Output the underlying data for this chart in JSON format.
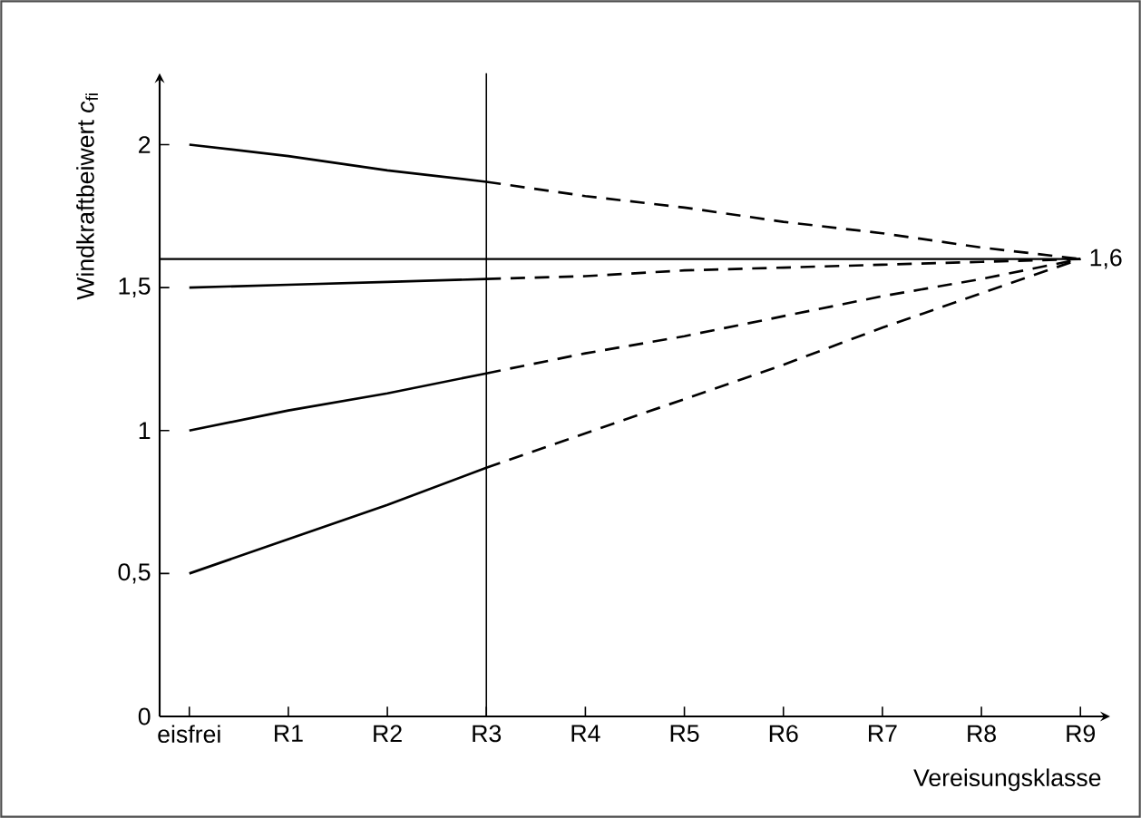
{
  "chart_data": {
    "type": "line",
    "xlabel": "Vereisungsklasse",
    "ylabel": "Windkraftbeiwert *c*$_{fi}$",
    "categories": [
      "eisfrei",
      "R1",
      "R2",
      "R3",
      "R4",
      "R5",
      "R6",
      "R7",
      "R8",
      "R9"
    ],
    "ylim": [
      0,
      2.25
    ],
    "yticks": [
      {
        "value": 0,
        "label": "0"
      },
      {
        "value": 0.5,
        "label": "0,5"
      },
      {
        "value": 1,
        "label": "1"
      },
      {
        "value": 1.5,
        "label": "1,5"
      },
      {
        "value": 2,
        "label": "2"
      }
    ],
    "series": [
      {
        "color": "#000000",
        "line_style": "solid",
        "values": [
          2,
          1.96,
          1.91,
          1.87,
          null,
          null,
          null,
          null,
          null,
          null
        ]
      },
      {
        "color": "#000000",
        "line_style": "dashed",
        "values": [
          null,
          null,
          null,
          1.87,
          1.82,
          1.78,
          1.73,
          1.69,
          1.64,
          1.6
        ]
      },
      {
        "color": "#000000",
        "line_style": "solid",
        "values": [
          1.5,
          1.51,
          1.52,
          1.53,
          null,
          null,
          null,
          null,
          null,
          null
        ]
      },
      {
        "color": "#000000",
        "line_style": "dashed",
        "values": [
          null,
          null,
          null,
          1.53,
          1.54,
          1.56,
          1.57,
          1.58,
          1.59,
          1.6
        ]
      },
      {
        "color": "#000000",
        "line_style": "solid",
        "values": [
          1,
          1.07,
          1.13,
          1.2,
          null,
          null,
          null,
          null,
          null,
          null
        ]
      },
      {
        "color": "#000000",
        "line_style": "dashed",
        "values": [
          null,
          null,
          null,
          1.2,
          1.27,
          1.33,
          1.4,
          1.47,
          1.53,
          1.6
        ]
      },
      {
        "color": "#000000",
        "line_style": "solid",
        "values": [
          0.5,
          0.62,
          0.74,
          0.87,
          null,
          null,
          null,
          null,
          null,
          null
        ]
      },
      {
        "color": "#000000",
        "line_style": "dashed",
        "values": [
          null,
          null,
          null,
          0.87,
          0.99,
          1.11,
          1.23,
          1.36,
          1.48,
          1.6
        ]
      }
    ],
    "ref_lines": [
      {
        "axis": "y",
        "value": 1.6,
        "label": "1,6",
        "color": "#000000"
      },
      {
        "axis": "x",
        "value": "R3",
        "color": "#000000"
      }
    ]
  }
}
